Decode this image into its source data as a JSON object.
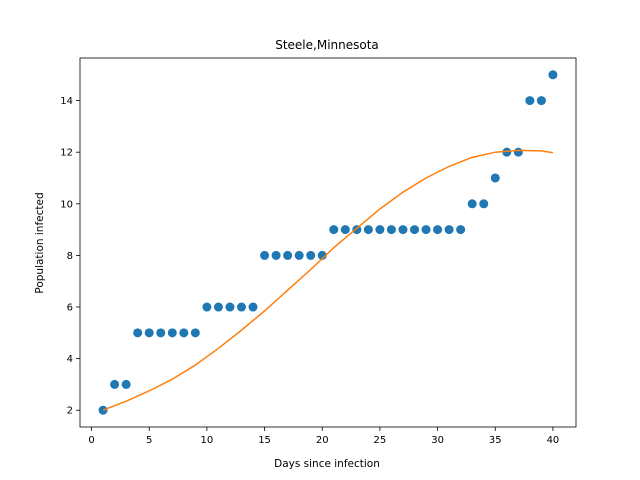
{
  "chart_data": {
    "type": "scatter",
    "title": "Steele,Minnesota",
    "xlabel": "Days since infection",
    "ylabel": "Population infected",
    "xlim": [
      -1,
      42
    ],
    "ylim": [
      1.35,
      15.65
    ],
    "xticks": [
      0,
      5,
      10,
      15,
      20,
      25,
      30,
      35,
      40
    ],
    "yticks": [
      2,
      4,
      6,
      8,
      10,
      12,
      14
    ],
    "grid": false,
    "legend": "none",
    "colors": {
      "points": "#1f77b4",
      "fit": "#ff7f0e"
    },
    "series": [
      {
        "kind": "scatter",
        "x": [
          1,
          2,
          3,
          4,
          5,
          6,
          7,
          8,
          9,
          10,
          11,
          12,
          13,
          14,
          15,
          16,
          17,
          18,
          19,
          20,
          21,
          22,
          23,
          24,
          25,
          26,
          27,
          28,
          29,
          30,
          31,
          32,
          33,
          34,
          35,
          36,
          37,
          38,
          39,
          40
        ],
        "y": [
          2,
          3,
          3,
          5,
          5,
          5,
          5,
          5,
          5,
          6,
          6,
          6,
          6,
          6,
          8,
          8,
          8,
          8,
          8,
          8,
          9,
          9,
          9,
          9,
          9,
          9,
          9,
          9,
          9,
          9,
          9,
          9,
          10,
          10,
          11,
          12,
          12,
          14,
          14,
          15
        ]
      },
      {
        "kind": "line",
        "x": [
          1,
          3,
          5,
          7,
          9,
          11,
          13,
          15,
          17,
          19,
          21,
          23,
          25,
          27,
          29,
          31,
          33,
          35,
          37,
          39,
          40
        ],
        "y": [
          2.0,
          2.35,
          2.75,
          3.2,
          3.75,
          4.4,
          5.1,
          5.85,
          6.65,
          7.45,
          8.3,
          9.05,
          9.8,
          10.45,
          11.0,
          11.45,
          11.8,
          12.0,
          12.07,
          12.05,
          11.98
        ]
      }
    ]
  }
}
